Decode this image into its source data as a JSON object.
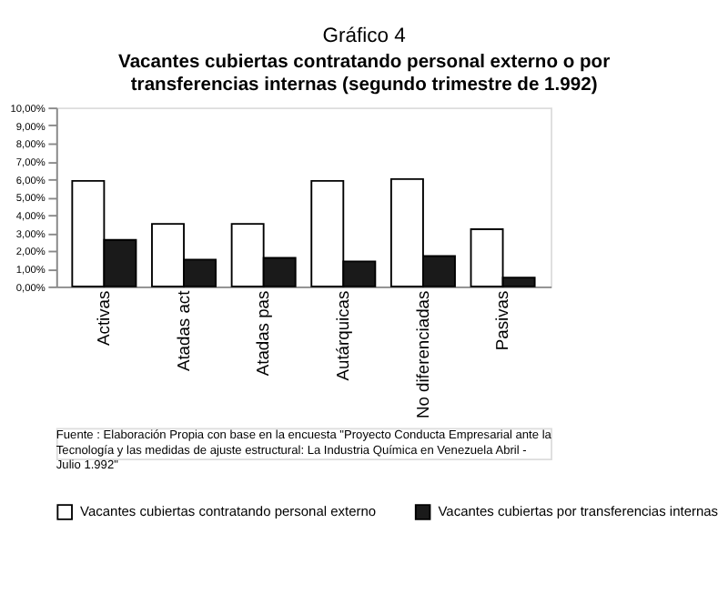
{
  "chart_data": {
    "type": "bar",
    "title": "Gráfico 4",
    "subtitle": "Vacantes cubiertas contratando personal externo o por transferencias internas (segundo trimestre de 1.992)",
    "categories": [
      "Activas",
      "Atadas act",
      "Atadas pas",
      "Autárquicas",
      "No diferenciadas",
      "Pasivas"
    ],
    "series": [
      {
        "name": "Vacantes cubiertas contratando personal externo",
        "color": "#ffffff",
        "values": [
          5.9,
          3.5,
          3.5,
          5.9,
          6.0,
          3.2
        ]
      },
      {
        "name": "Vacantes cubiertas por transferencias internas",
        "color": "#1a1a1a",
        "values": [
          2.6,
          1.5,
          1.6,
          1.4,
          1.7,
          0.5
        ]
      }
    ],
    "ylim": [
      0,
      10
    ],
    "yticks": [
      {
        "value": 0,
        "label": "0,00%"
      },
      {
        "value": 1,
        "label": "1,00%"
      },
      {
        "value": 2,
        "label": "2,00%"
      },
      {
        "value": 3,
        "label": "3,00%"
      },
      {
        "value": 4,
        "label": "4,00%"
      },
      {
        "value": 5,
        "label": "5,00%"
      },
      {
        "value": 6,
        "label": "6,00%"
      },
      {
        "value": 7,
        "label": "7,00%"
      },
      {
        "value": 8,
        "label": "8,00%"
      },
      {
        "value": 9,
        "label": "9,00%"
      },
      {
        "value": 10,
        "label": "10,00%"
      }
    ],
    "grid": false,
    "legend": "bottom",
    "annotations": [
      "Fuente : Elaboración Propia con base en la encuesta \"Proyecto Conducta Empresarial ante la Tecnología y las medidas de ajuste estructural: La Industria Química en Venezuela Abril - Julio 1.992\""
    ]
  }
}
